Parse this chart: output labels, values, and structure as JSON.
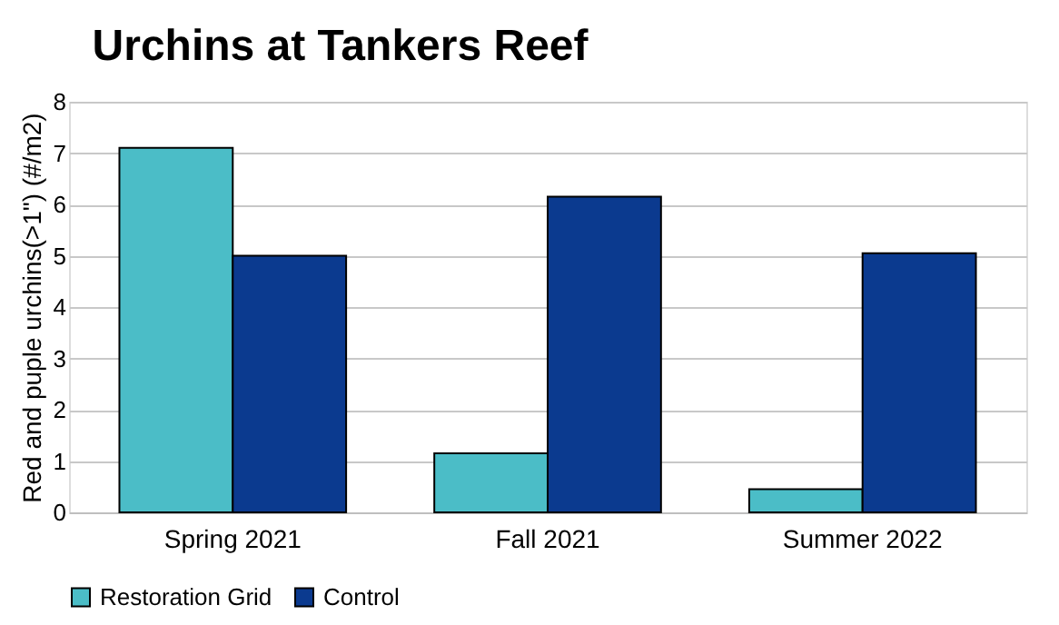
{
  "chart_data": {
    "type": "bar",
    "title": "Urchins at Tankers Reef",
    "ylabel": "Red and puple urchins(>1\") (#/m2)",
    "categories": [
      "Spring 2021",
      "Fall 2021",
      "Summer 2022"
    ],
    "series": [
      {
        "name": "Restoration Grid",
        "color": "#4bbdc7",
        "values": [
          7.1,
          1.15,
          0.45
        ]
      },
      {
        "name": "Control",
        "color": "#0b3a8f",
        "values": [
          5.0,
          6.15,
          5.05
        ]
      }
    ],
    "ylim": [
      0,
      8
    ],
    "yticks": [
      0,
      1,
      2,
      3,
      4,
      5,
      6,
      7,
      8
    ],
    "grid": "y",
    "legend": "bottom"
  }
}
